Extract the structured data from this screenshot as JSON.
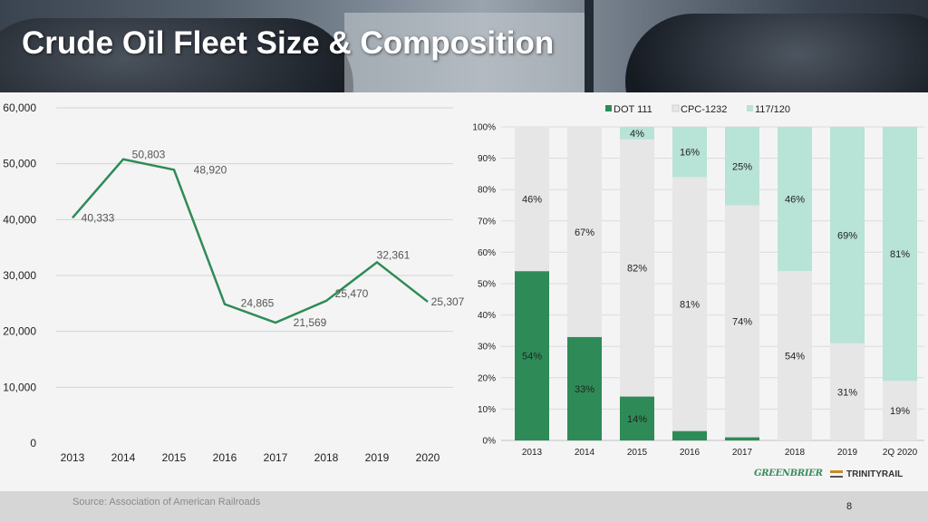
{
  "title": "Crude Oil Fleet Size & Composition",
  "source": "Source: Association of American Railroads",
  "page_number": "8",
  "logos": {
    "greenbrier": "GREENBRIER",
    "trinity": "TRINITYRAIL"
  },
  "colors": {
    "line": "#2e8b57",
    "dot111": "#2e8b57",
    "cpc1232": "#e6e6e6",
    "r117": "#b8e3d7"
  },
  "chart_data": [
    {
      "type": "line",
      "categories": [
        "2013",
        "2014",
        "2015",
        "2016",
        "2017",
        "2018",
        "2019",
        "2020"
      ],
      "values": [
        40333,
        50803,
        48920,
        24865,
        21569,
        25470,
        32361,
        25307
      ],
      "data_labels": [
        "40,333",
        "50,803",
        "48,920",
        "24,865",
        "21,569",
        "25,470",
        "32,361",
        "25,307"
      ],
      "ylim": [
        0,
        60000
      ],
      "yticks": [
        0,
        10000,
        20000,
        30000,
        40000,
        50000,
        60000
      ],
      "ytick_labels": [
        "0",
        "10,000",
        "20,000",
        "30,000",
        "40,000",
        "50,000",
        "60,000"
      ],
      "grid": true
    },
    {
      "type": "bar",
      "stacked": true,
      "categories": [
        "2013",
        "2014",
        "2015",
        "2016",
        "2017",
        "2018",
        "2019",
        "2Q 2020"
      ],
      "series": [
        {
          "name": "DOT 111",
          "values": [
            54,
            33,
            14,
            3,
            1,
            0,
            0,
            0
          ],
          "labels": [
            "54%",
            "33%",
            "14%",
            "3%",
            "1%",
            "",
            "",
            ""
          ]
        },
        {
          "name": "CPC-1232",
          "values": [
            46,
            67,
            82,
            81,
            74,
            54,
            31,
            19
          ],
          "labels": [
            "46%",
            "67%",
            "82%",
            "81%",
            "74%",
            "54%",
            "31%",
            "19%"
          ]
        },
        {
          "name": "117/120",
          "values": [
            0,
            0,
            4,
            16,
            25,
            46,
            69,
            81
          ],
          "labels": [
            "",
            "",
            "4%",
            "16%",
            "25%",
            "46%",
            "69%",
            "81%"
          ]
        }
      ],
      "ylim": [
        0,
        100
      ],
      "ytick_labels": [
        "0%",
        "10%",
        "20%",
        "30%",
        "40%",
        "50%",
        "60%",
        "70%",
        "80%",
        "90%",
        "100%"
      ],
      "legend_position": "top",
      "grid": true
    }
  ]
}
